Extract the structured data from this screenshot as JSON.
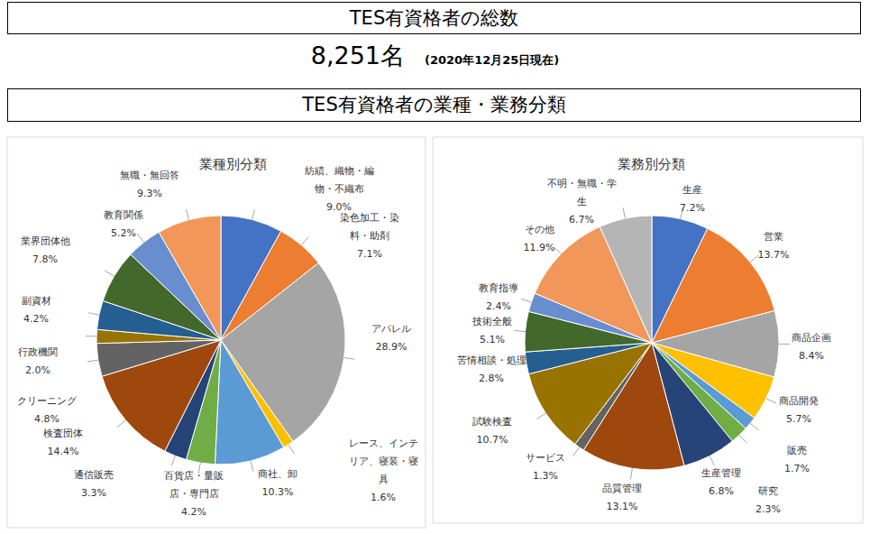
{
  "header": {
    "title": "TES有資格者の総数",
    "total": "8,251名",
    "date": "(2020年12月25日現在)",
    "section": "TES有資格者の業種・業務分類"
  },
  "chart_data": [
    {
      "type": "pie",
      "title": "業種別分類",
      "categories": [
        "紡績、織物・編物・不織布",
        "染色加工・染料・助剤",
        "アパレル",
        "レース、インテリア、寝装・寝具",
        "商社、卸",
        "百貨店・量販店・専門店",
        "通信販売",
        "検査団体",
        "クリーニング",
        "行政機関",
        "副資材",
        "業界団体他",
        "教育関係",
        "無職・無回答"
      ],
      "values": [
        9.0,
        7.1,
        28.9,
        1.6,
        10.3,
        4.2,
        3.3,
        14.4,
        4.8,
        2.0,
        4.2,
        7.8,
        5.2,
        9.3
      ],
      "value_labels": [
        "9.0%",
        "7.1%",
        "28.9%",
        "1.6%",
        "10.3%",
        "4.2%",
        "3.3%",
        "14.4%",
        "4.8%",
        "2.0%",
        "4.2%",
        "7.8%",
        "5.2%",
        "9.3%"
      ],
      "colors": [
        "#4472c4",
        "#ed7d31",
        "#a5a5a5",
        "#ffc000",
        "#5b9bd5",
        "#70ad47",
        "#264478",
        "#9e480e",
        "#636363",
        "#997300",
        "#255e91",
        "#43682b",
        "#698ed0",
        "#f1975a"
      ],
      "data_labels": true
    },
    {
      "type": "pie",
      "title": "業務別分類",
      "categories": [
        "生産",
        "営業",
        "商品企画",
        "商品開発",
        "販売",
        "研究",
        "生産管理",
        "品質管理",
        "サービス",
        "試験検査",
        "苦情相談・処理",
        "技術全般",
        "教育指導",
        "その他",
        "不明・無職・学生"
      ],
      "values": [
        7.2,
        13.7,
        8.4,
        5.7,
        1.7,
        2.3,
        6.8,
        13.1,
        1.3,
        10.7,
        2.8,
        5.1,
        2.4,
        11.9,
        6.7
      ],
      "value_labels": [
        "7.2%",
        "13.7%",
        "8.4%",
        "5.7%",
        "1.7%",
        "2.3%",
        "6.8%",
        "13.1%",
        "1.3%",
        "10.7%",
        "2.8%",
        "5.1%",
        "2.4%",
        "11.9%",
        "6.7%"
      ],
      "colors": [
        "#4472c4",
        "#ed7d31",
        "#a5a5a5",
        "#ffc000",
        "#5b9bd5",
        "#70ad47",
        "#264478",
        "#9e480e",
        "#636363",
        "#997300",
        "#255e91",
        "#43682b",
        "#698ed0",
        "#f1975a",
        "#b5b5b5"
      ],
      "data_labels": true
    }
  ]
}
